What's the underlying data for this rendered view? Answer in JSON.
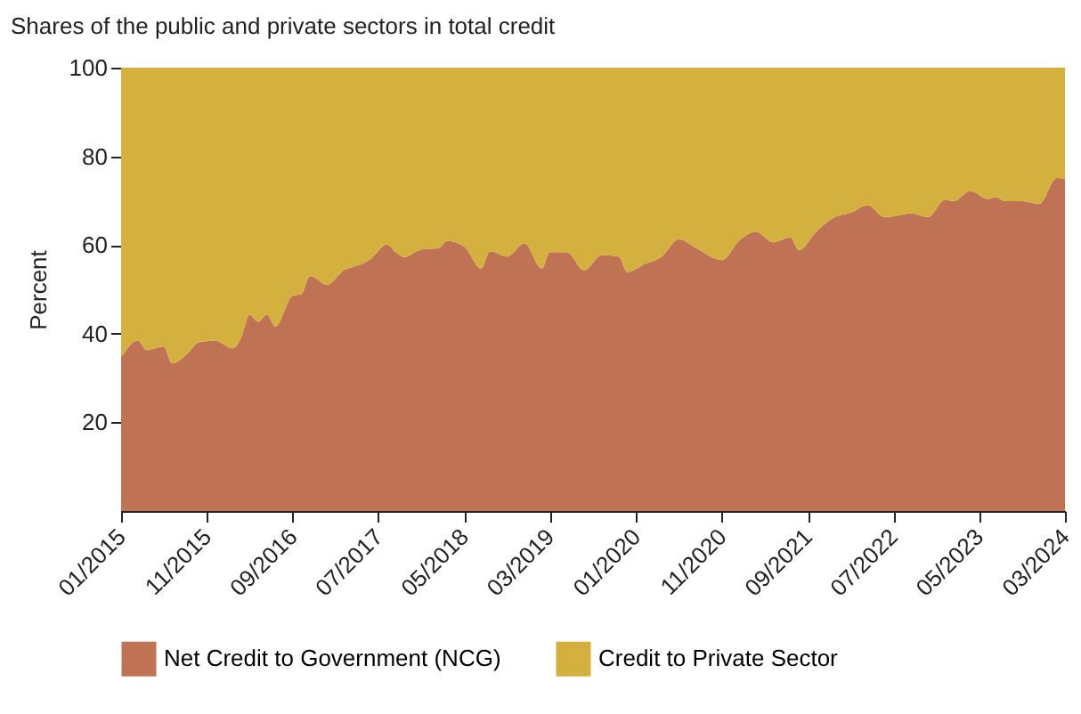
{
  "chart_data": {
    "type": "area",
    "title": "Shares of the public and private sectors in total credit",
    "ylabel": "Percent",
    "stacked": true,
    "legend": "bottom",
    "grid": false,
    "x": [
      "2015-01",
      "2015-03",
      "2015-04",
      "2015-06",
      "2015-07",
      "2015-09",
      "2015-10",
      "2015-12",
      "2016-02",
      "2016-03",
      "2016-04",
      "2016-05",
      "2016-06",
      "2016-07",
      "2016-09",
      "2016-10",
      "2016-11",
      "2017-01",
      "2017-03",
      "2017-04",
      "2017-06",
      "2017-08",
      "2017-09",
      "2017-10",
      "2017-12",
      "2018-02",
      "2018-03",
      "2018-05",
      "2018-07",
      "2018-08",
      "2018-10",
      "2018-12",
      "2019-02",
      "2019-03",
      "2019-05",
      "2019-07",
      "2019-09",
      "2019-11",
      "2019-12",
      "2020-02",
      "2020-04",
      "2020-06",
      "2020-08",
      "2020-11",
      "2021-01",
      "2021-03",
      "2021-05",
      "2021-07",
      "2021-08",
      "2021-10",
      "2021-12",
      "2022-02",
      "2022-04",
      "2022-06",
      "2022-09",
      "2022-11",
      "2023-01",
      "2023-02",
      "2023-04",
      "2023-06",
      "2023-07",
      "2023-08",
      "2023-10",
      "2023-12",
      "2024-02",
      "2024-03"
    ],
    "series": [
      {
        "name": "Net Credit to Government (NCG)",
        "color": "#bf7254",
        "values": [
          34.5,
          38.5,
          36.3,
          37.1,
          33.3,
          36.0,
          38.0,
          38.4,
          36.7,
          39.0,
          44.3,
          42.7,
          44.3,
          41.6,
          48.6,
          48.9,
          53.0,
          51.0,
          54.3,
          55.0,
          56.7,
          60.1,
          58.4,
          57.3,
          59.0,
          59.3,
          60.9,
          59.7,
          54.7,
          58.6,
          57.4,
          60.4,
          54.7,
          58.4,
          58.4,
          54.3,
          57.7,
          57.4,
          53.9,
          55.7,
          57.4,
          61.3,
          59.3,
          56.6,
          61.0,
          63.0,
          60.6,
          61.7,
          58.8,
          63.0,
          66.1,
          67.3,
          69.0,
          66.3,
          67.1,
          66.3,
          70.2,
          69.9,
          72.2,
          70.4,
          70.8,
          69.9,
          69.9,
          69.3,
          75.1,
          75.0
        ]
      },
      {
        "name": "Credit to Private Sector",
        "color": "#d4b13e",
        "values": [
          65.5,
          61.5,
          63.7,
          62.9,
          66.7,
          64.0,
          62.0,
          61.6,
          63.3,
          61.0,
          55.7,
          57.3,
          55.7,
          58.4,
          51.4,
          51.1,
          47.0,
          49.0,
          45.7,
          45.0,
          43.3,
          39.9,
          41.6,
          42.7,
          41.0,
          40.7,
          39.1,
          40.3,
          45.3,
          41.4,
          42.6,
          39.6,
          45.3,
          41.6,
          41.6,
          45.7,
          42.3,
          42.6,
          46.1,
          44.3,
          42.6,
          38.7,
          40.7,
          43.4,
          39.0,
          37.0,
          39.4,
          38.3,
          41.2,
          37.0,
          33.9,
          32.7,
          31.0,
          33.7,
          32.9,
          33.7,
          29.8,
          30.1,
          27.8,
          29.6,
          29.2,
          30.1,
          30.1,
          30.7,
          24.9,
          25.0
        ]
      }
    ],
    "xlim": [
      "2015-01",
      "2024-03"
    ],
    "xticks": [
      {
        "value": "2015-01",
        "label": "01/2015"
      },
      {
        "value": "2015-11",
        "label": "11/2015"
      },
      {
        "value": "2016-09",
        "label": "09/2016"
      },
      {
        "value": "2017-07",
        "label": "07/2017"
      },
      {
        "value": "2018-05",
        "label": "05/2018"
      },
      {
        "value": "2019-03",
        "label": "03/2019"
      },
      {
        "value": "2020-01",
        "label": "01/2020"
      },
      {
        "value": "2020-11",
        "label": "11/2020"
      },
      {
        "value": "2021-09",
        "label": "09/2021"
      },
      {
        "value": "2022-07",
        "label": "07/2022"
      },
      {
        "value": "2023-05",
        "label": "05/2023"
      },
      {
        "value": "2024-03",
        "label": "03/2024"
      }
    ],
    "ylim": [
      0,
      100
    ],
    "yticks": [
      20,
      40,
      60,
      80,
      100
    ]
  }
}
